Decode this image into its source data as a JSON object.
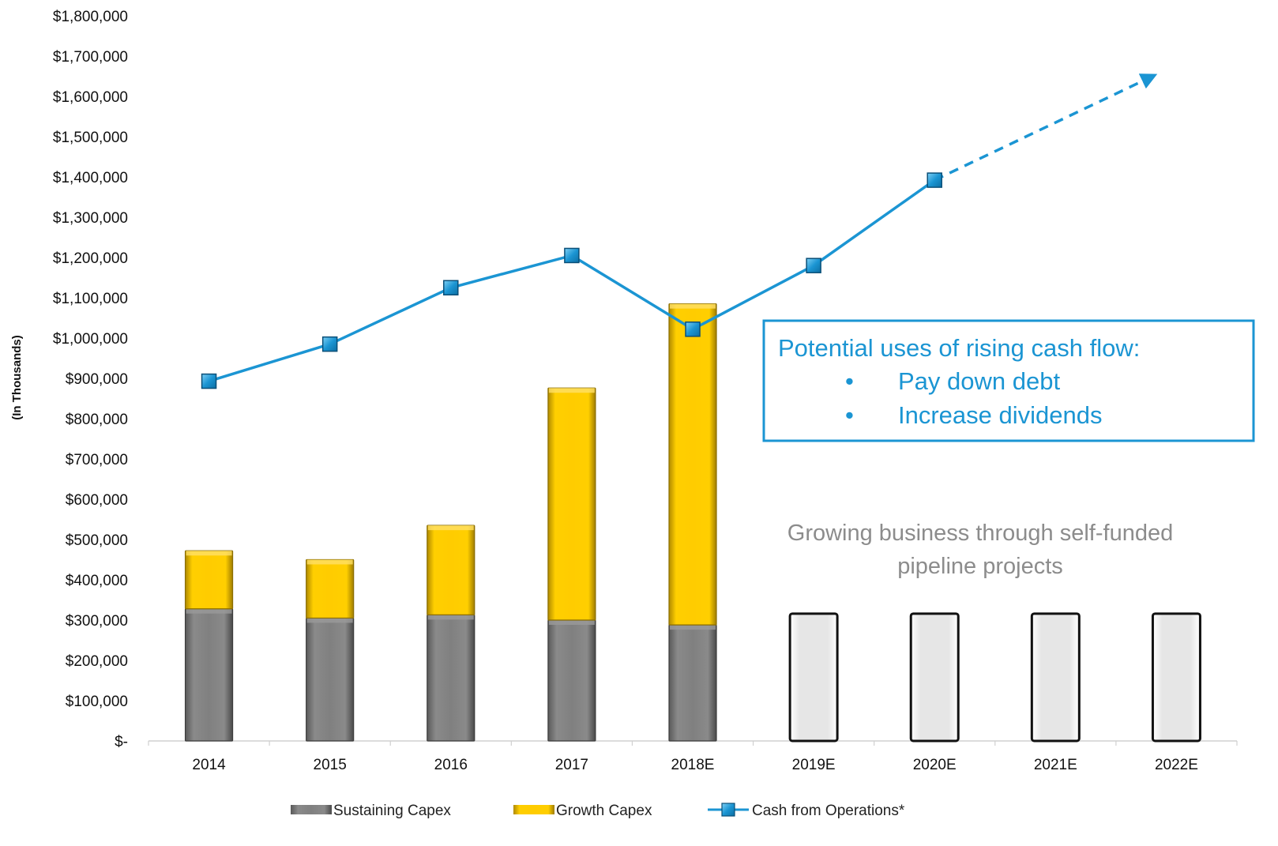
{
  "chart_data": {
    "type": "bar",
    "ylabel": "(In Thousands)",
    "ylim": [
      0,
      1800000
    ],
    "yticks": [
      0,
      100000,
      200000,
      300000,
      400000,
      500000,
      600000,
      700000,
      800000,
      900000,
      1000000,
      1100000,
      1200000,
      1300000,
      1400000,
      1500000,
      1600000,
      1700000,
      1800000
    ],
    "ytick_labels": [
      "$-",
      "$100,000",
      "$200,000",
      "$300,000",
      "$400,000",
      "$500,000",
      "$600,000",
      "$700,000",
      "$800,000",
      "$900,000",
      "$1,000,000",
      "$1,100,000",
      "$1,200,000",
      "$1,300,000",
      "$1,400,000",
      "$1,500,000",
      "$1,600,000",
      "$1,700,000",
      "$1,800,000"
    ],
    "categories": [
      "2014",
      "2015",
      "2016",
      "2017",
      "2018E",
      "2019E",
      "2020E",
      "2021E",
      "2022E"
    ],
    "series": [
      {
        "name": "Sustaining Capex",
        "kind": "bar",
        "color": "#7f7f7f",
        "values": [
          328000,
          305000,
          313000,
          300000,
          288000,
          null,
          null,
          null,
          null
        ]
      },
      {
        "name": "Growth Capex",
        "kind": "bar",
        "color": "#ffcc00",
        "values": [
          144000,
          145000,
          222000,
          576000,
          797000,
          null,
          null,
          null,
          null
        ]
      },
      {
        "name": "",
        "kind": "bar",
        "color": "#e3e3e3",
        "values": [
          null,
          null,
          null,
          null,
          null,
          316000,
          316000,
          316000,
          316000
        ]
      },
      {
        "name": "Cash from Operations*",
        "kind": "line",
        "color": "#1b95d3",
        "values": [
          893000,
          985000,
          1125000,
          1205000,
          1022000,
          1180000,
          1392000,
          null,
          null
        ],
        "projection_arrow_to": 1652000
      }
    ],
    "annotations": {
      "callout": {
        "title": "Potential uses of rising cash flow:",
        "bullets": [
          "Pay down debt",
          "Increase dividends"
        ]
      },
      "note": [
        "Growing business through self-funded",
        "pipeline projects"
      ]
    },
    "legend_position": "bottom",
    "grid": false
  }
}
